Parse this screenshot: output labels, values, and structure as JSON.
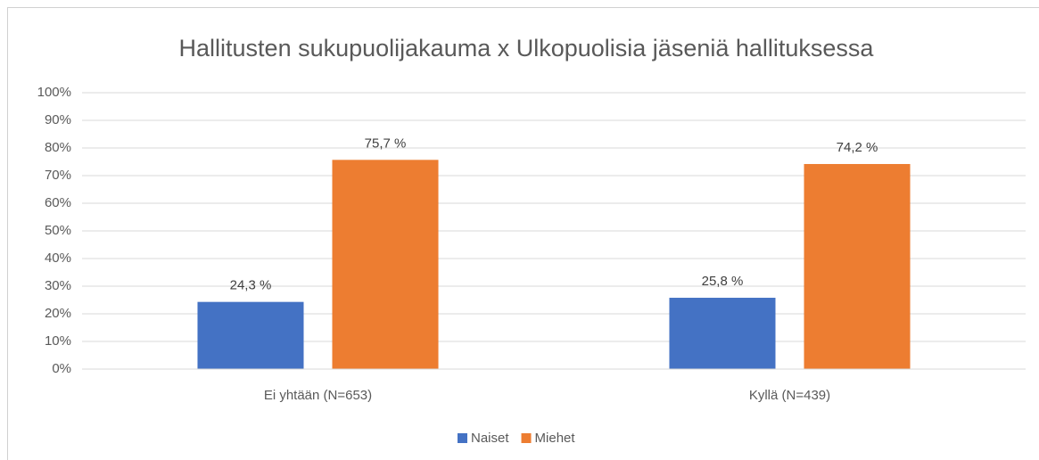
{
  "chart_data": {
    "type": "bar",
    "title": "Hallitusten sukupuolijakauma x Ulkopuolisia jäseniä hallituksessa",
    "categories": [
      "Ei yhtään (N=653)",
      "Kyllä (N=439)"
    ],
    "series": [
      {
        "name": "Naiset",
        "color": "#4472c4",
        "values": [
          24.3,
          25.8
        ],
        "value_labels": [
          "24,3 %",
          "25,8 %"
        ]
      },
      {
        "name": "Miehet",
        "color": "#ed7d31",
        "values": [
          75.7,
          74.2
        ],
        "value_labels": [
          "75,7 %",
          "74,2 %"
        ]
      }
    ],
    "ylim": [
      0,
      100
    ],
    "yticks": [
      {
        "value": 0,
        "label": "0%"
      },
      {
        "value": 10,
        "label": "10%"
      },
      {
        "value": 20,
        "label": "20%"
      },
      {
        "value": 30,
        "label": "30%"
      },
      {
        "value": 40,
        "label": "40%"
      },
      {
        "value": 50,
        "label": "50%"
      },
      {
        "value": 60,
        "label": "60%"
      },
      {
        "value": 70,
        "label": "70%"
      },
      {
        "value": 80,
        "label": "80%"
      },
      {
        "value": 90,
        "label": "90%"
      },
      {
        "value": 100,
        "label": "100%"
      }
    ],
    "grid": true,
    "legend": "bottom"
  }
}
